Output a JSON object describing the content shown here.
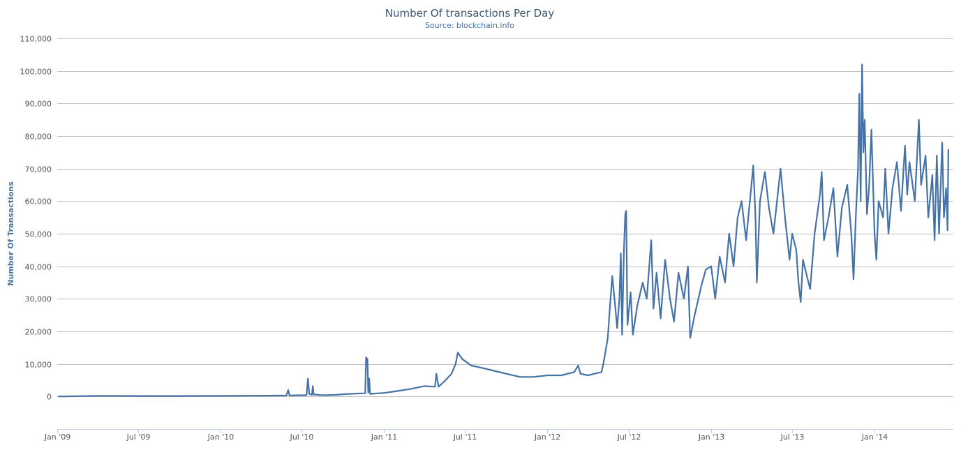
{
  "chart_data": {
    "type": "line",
    "title": "Number Of transactions Per Day",
    "subtitle": "Source: blockchain.info",
    "ylabel": "Number Of Transactions",
    "xlabel": "",
    "ylim": [
      -10000,
      110000
    ],
    "yticks": [
      0,
      10000,
      20000,
      30000,
      40000,
      50000,
      60000,
      70000,
      80000,
      90000,
      100000,
      110000
    ],
    "ytick_labels": [
      "0",
      "10,000",
      "20,000",
      "30,000",
      "40,000",
      "50,000",
      "60,000",
      "70,000",
      "80,000",
      "90,000",
      "100,000",
      "110,000"
    ],
    "xlim": [
      "2009-01-01",
      "2014-06-26"
    ],
    "xtick_dates": [
      "2009-01-01",
      "2009-07-01",
      "2010-01-01",
      "2010-07-01",
      "2011-01-01",
      "2011-07-01",
      "2012-01-01",
      "2012-07-01",
      "2013-01-01",
      "2013-07-01",
      "2014-01-01"
    ],
    "xtick_labels": [
      "Jan '09",
      "Jul '09",
      "Jan '10",
      "Jul '10",
      "Jan '11",
      "Jul '11",
      "Jan '12",
      "Jul '12",
      "Jan '13",
      "Jul '13",
      "Jan '14"
    ],
    "grid": true,
    "series": [
      {
        "name": "",
        "color": "#4572A7",
        "points": [
          [
            "2009-01-03",
            0
          ],
          [
            "2009-04-01",
            200
          ],
          [
            "2009-07-01",
            150
          ],
          [
            "2009-10-01",
            150
          ],
          [
            "2010-01-01",
            200
          ],
          [
            "2010-04-01",
            250
          ],
          [
            "2010-05-28",
            300
          ],
          [
            "2010-06-01",
            2000
          ],
          [
            "2010-06-04",
            300
          ],
          [
            "2010-07-01",
            400
          ],
          [
            "2010-07-12",
            400
          ],
          [
            "2010-07-15",
            5500
          ],
          [
            "2010-07-18",
            800
          ],
          [
            "2010-07-24",
            500
          ],
          [
            "2010-07-26",
            3200
          ],
          [
            "2010-07-28",
            600
          ],
          [
            "2010-08-20",
            400
          ],
          [
            "2010-09-15",
            500
          ],
          [
            "2010-10-01",
            700
          ],
          [
            "2010-11-01",
            900
          ],
          [
            "2010-11-20",
            1000
          ],
          [
            "2010-11-22",
            12000
          ],
          [
            "2010-11-25",
            11500
          ],
          [
            "2010-11-27",
            1200
          ],
          [
            "2010-11-29",
            5500
          ],
          [
            "2010-12-01",
            800
          ],
          [
            "2010-12-20",
            1000
          ],
          [
            "2011-01-01",
            1100
          ],
          [
            "2011-02-01",
            1700
          ],
          [
            "2011-03-01",
            2300
          ],
          [
            "2011-04-01",
            3200
          ],
          [
            "2011-04-25",
            3000
          ],
          [
            "2011-04-28",
            7000
          ],
          [
            "2011-05-03",
            3000
          ],
          [
            "2011-05-15",
            4500
          ],
          [
            "2011-06-01",
            7000
          ],
          [
            "2011-06-10",
            10000
          ],
          [
            "2011-06-15",
            13500
          ],
          [
            "2011-06-25",
            11500
          ],
          [
            "2011-07-15",
            9500
          ],
          [
            "2011-08-01",
            9000
          ],
          [
            "2011-09-01",
            8000
          ],
          [
            "2011-10-01",
            7000
          ],
          [
            "2011-11-01",
            6000
          ],
          [
            "2011-12-01",
            6000
          ],
          [
            "2012-01-01",
            6500
          ],
          [
            "2012-02-01",
            6500
          ],
          [
            "2012-03-01",
            7500
          ],
          [
            "2012-03-10",
            9500
          ],
          [
            "2012-03-15",
            7000
          ],
          [
            "2012-04-01",
            6500
          ],
          [
            "2012-04-15",
            7000
          ],
          [
            "2012-05-01",
            7500
          ],
          [
            "2012-05-05",
            10000
          ],
          [
            "2012-05-15",
            18000
          ],
          [
            "2012-05-20",
            28000
          ],
          [
            "2012-05-25",
            37000
          ],
          [
            "2012-06-01",
            27000
          ],
          [
            "2012-06-05",
            21000
          ],
          [
            "2012-06-10",
            30000
          ],
          [
            "2012-06-13",
            44000
          ],
          [
            "2012-06-16",
            19000
          ],
          [
            "2012-06-20",
            45000
          ],
          [
            "2012-06-23",
            56000
          ],
          [
            "2012-06-25",
            57000
          ],
          [
            "2012-06-28",
            22000
          ],
          [
            "2012-07-05",
            32000
          ],
          [
            "2012-07-10",
            19000
          ],
          [
            "2012-07-20",
            28000
          ],
          [
            "2012-08-01",
            35000
          ],
          [
            "2012-08-10",
            30000
          ],
          [
            "2012-08-20",
            48000
          ],
          [
            "2012-08-25",
            27000
          ],
          [
            "2012-09-01",
            38000
          ],
          [
            "2012-09-10",
            24000
          ],
          [
            "2012-09-20",
            42000
          ],
          [
            "2012-10-01",
            30000
          ],
          [
            "2012-10-10",
            23000
          ],
          [
            "2012-10-20",
            38000
          ],
          [
            "2012-11-01",
            30000
          ],
          [
            "2012-11-10",
            40000
          ],
          [
            "2012-11-15",
            18000
          ],
          [
            "2012-11-25",
            25000
          ],
          [
            "2012-12-10",
            34000
          ],
          [
            "2012-12-20",
            39000
          ],
          [
            "2013-01-01",
            40000
          ],
          [
            "2013-01-10",
            30000
          ],
          [
            "2013-01-20",
            43000
          ],
          [
            "2013-02-01",
            35000
          ],
          [
            "2013-02-10",
            50000
          ],
          [
            "2013-02-20",
            40000
          ],
          [
            "2013-03-01",
            55000
          ],
          [
            "2013-03-10",
            60000
          ],
          [
            "2013-03-20",
            48000
          ],
          [
            "2013-04-01",
            65000
          ],
          [
            "2013-04-05",
            71000
          ],
          [
            "2013-04-10",
            55000
          ],
          [
            "2013-04-13",
            35000
          ],
          [
            "2013-04-20",
            60000
          ],
          [
            "2013-05-01",
            69000
          ],
          [
            "2013-05-10",
            58000
          ],
          [
            "2013-05-20",
            50000
          ],
          [
            "2013-06-01",
            65000
          ],
          [
            "2013-06-05",
            70000
          ],
          [
            "2013-06-15",
            55000
          ],
          [
            "2013-06-25",
            42000
          ],
          [
            "2013-07-01",
            50000
          ],
          [
            "2013-07-10",
            45000
          ],
          [
            "2013-07-15",
            35000
          ],
          [
            "2013-07-20",
            29000
          ],
          [
            "2013-07-25",
            42000
          ],
          [
            "2013-08-01",
            38000
          ],
          [
            "2013-08-10",
            33000
          ],
          [
            "2013-08-20",
            50000
          ],
          [
            "2013-09-01",
            62000
          ],
          [
            "2013-09-05",
            69000
          ],
          [
            "2013-09-10",
            48000
          ],
          [
            "2013-09-20",
            55000
          ],
          [
            "2013-10-01",
            64000
          ],
          [
            "2013-10-10",
            43000
          ],
          [
            "2013-10-20",
            58000
          ],
          [
            "2013-11-01",
            65000
          ],
          [
            "2013-11-10",
            50000
          ],
          [
            "2013-11-15",
            36000
          ],
          [
            "2013-11-20",
            55000
          ],
          [
            "2013-11-25",
            70000
          ],
          [
            "2013-11-28",
            93000
          ],
          [
            "2013-12-01",
            60000
          ],
          [
            "2013-12-04",
            102000
          ],
          [
            "2013-12-07",
            75000
          ],
          [
            "2013-12-10",
            85000
          ],
          [
            "2013-12-15",
            56000
          ],
          [
            "2013-12-20",
            65000
          ],
          [
            "2013-12-25",
            82000
          ],
          [
            "2014-01-01",
            50000
          ],
          [
            "2014-01-05",
            42000
          ],
          [
            "2014-01-10",
            60000
          ],
          [
            "2014-01-20",
            55000
          ],
          [
            "2014-01-25",
            70000
          ],
          [
            "2014-02-01",
            50000
          ],
          [
            "2014-02-10",
            64000
          ],
          [
            "2014-02-20",
            72000
          ],
          [
            "2014-03-01",
            57000
          ],
          [
            "2014-03-10",
            77000
          ],
          [
            "2014-03-15",
            62000
          ],
          [
            "2014-03-20",
            72000
          ],
          [
            "2014-04-01",
            60000
          ],
          [
            "2014-04-10",
            85000
          ],
          [
            "2014-04-15",
            65000
          ],
          [
            "2014-04-25",
            74000
          ],
          [
            "2014-05-01",
            55000
          ],
          [
            "2014-05-10",
            68000
          ],
          [
            "2014-05-15",
            48000
          ],
          [
            "2014-05-20",
            74000
          ],
          [
            "2014-05-25",
            50000
          ],
          [
            "2014-06-01",
            78000
          ],
          [
            "2014-06-05",
            55000
          ],
          [
            "2014-06-10",
            64000
          ],
          [
            "2014-06-13",
            51000
          ],
          [
            "2014-06-15",
            76000
          ]
        ]
      }
    ]
  }
}
